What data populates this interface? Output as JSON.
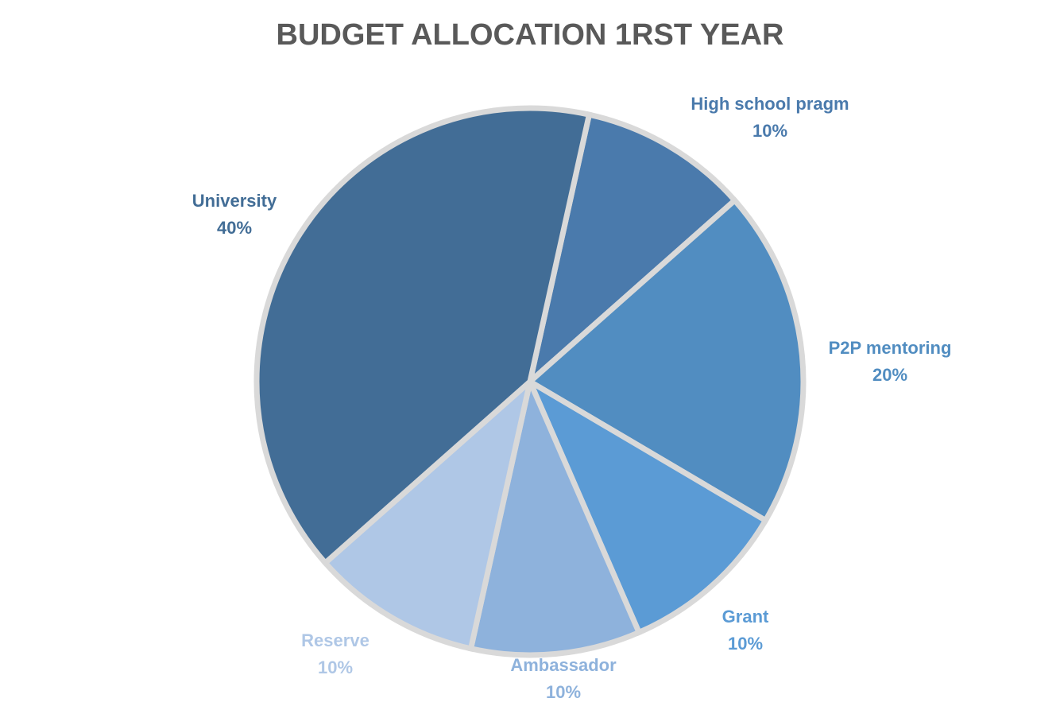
{
  "chart_data": {
    "type": "pie",
    "title": "BUDGET ALLOCATION 1RST YEAR",
    "categories": [
      "High school pragm",
      "P2P mentoring",
      "Grant",
      "Ambassador",
      "Reserve",
      "University"
    ],
    "values": [
      10,
      20,
      10,
      10,
      10,
      40
    ],
    "value_labels": [
      "10%",
      "20%",
      "10%",
      "10%",
      "10%",
      "40%"
    ],
    "colors": [
      "#4a7aac",
      "#518dc1",
      "#5b9bd5",
      "#8eb2dc",
      "#afc7e6",
      "#426d96"
    ],
    "label_colors": [
      "#4a7aac",
      "#518dc1",
      "#5b9bd5",
      "#8eb2dc",
      "#afc7e6",
      "#426d96"
    ],
    "exploded": [
      false,
      false,
      false,
      false,
      false,
      false
    ],
    "legend": "none",
    "data_labels": "category-and-percent"
  }
}
